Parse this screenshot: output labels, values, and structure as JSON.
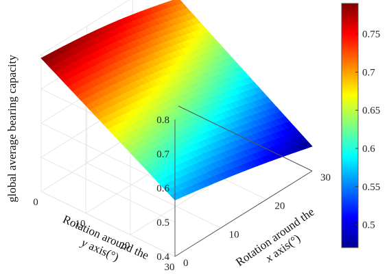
{
  "chart_data": {
    "type": "surface",
    "title": "",
    "zlabel": "global average bearing capacity",
    "ylabel": {
      "prefix": "Rotation around the",
      "symbol": "y",
      "suffix": " axis(°)"
    },
    "xlabel": {
      "prefix": "Rotation around the",
      "symbol": "x",
      "suffix": " axis(°)"
    },
    "y_ticks": [
      "0",
      "10",
      "20",
      "30"
    ],
    "x_ticks": [
      "0",
      "10",
      "20",
      "30"
    ],
    "z_ticks": [
      "0.4",
      "0.5",
      "0.6",
      "0.7",
      "0.8"
    ],
    "xlim": [
      0,
      30
    ],
    "ylim": [
      0,
      30
    ],
    "zlim": [
      0.4,
      0.8
    ],
    "colormap": "jet",
    "colorbar_range": [
      0.47,
      0.79
    ],
    "colorbar_ticks": [
      "0.5",
      "0.55",
      "0.6",
      "0.65",
      "0.7",
      "0.75"
    ],
    "corner_values": {
      "x0_y0": 0.79,
      "x30_y0": 0.715,
      "x0_y30": 0.565,
      "x30_y30": 0.472
    },
    "grid": true
  }
}
